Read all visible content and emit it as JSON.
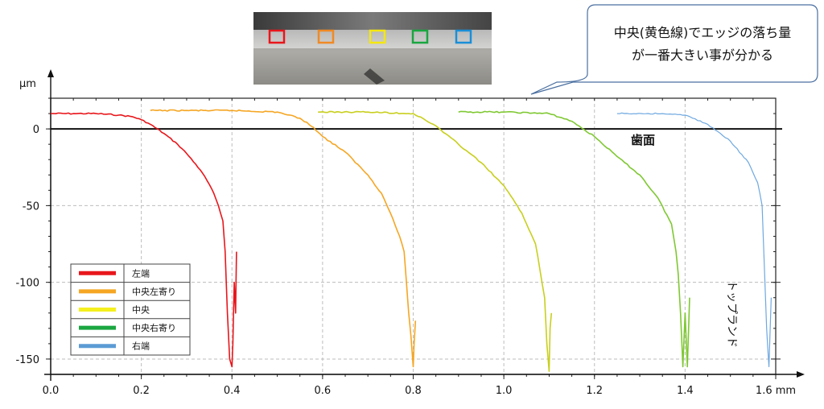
{
  "chart_data": {
    "type": "line",
    "xlabel": "mm",
    "ylabel": "µm",
    "xlim": [
      0,
      1.6
    ],
    "ylim": [
      -160,
      20
    ],
    "x_ticks": [
      "0.0",
      "0.2",
      "0.4",
      "0.6",
      "0.8",
      "1.0",
      "1.2",
      "1.4",
      "1.6 mm"
    ],
    "y_ticks": [
      "0",
      "-50",
      "-100",
      "-150"
    ],
    "y_unit": "µm",
    "grid": true,
    "legend_position": "bottom-left",
    "reference_line": {
      "y": 0,
      "label": "歯面"
    },
    "side_label": "トップランド",
    "callout": [
      "中央(黄色線)でエッジの落ち量",
      "が一番大きい事が分かる"
    ],
    "photo_markers": [
      {
        "color": "#e8161b"
      },
      {
        "color": "#f08a24"
      },
      {
        "color": "#f5e70f"
      },
      {
        "color": "#1aa640"
      },
      {
        "color": "#1a8fd8"
      }
    ],
    "series": [
      {
        "name": "左端",
        "color": "#e8161b",
        "x": [
          0.0,
          0.05,
          0.1,
          0.15,
          0.18,
          0.2,
          0.22,
          0.25,
          0.28,
          0.3,
          0.32,
          0.34,
          0.36,
          0.37,
          0.38,
          0.385,
          0.39,
          0.395,
          0.4,
          0.402,
          0.405,
          0.408,
          0.41
        ],
        "y": [
          10,
          10,
          10,
          9,
          8,
          6,
          3,
          -3,
          -10,
          -16,
          -23,
          -31,
          -42,
          -50,
          -60,
          -80,
          -120,
          -150,
          -155,
          -140,
          -100,
          -120,
          -80
        ]
      },
      {
        "name": "中央左寄り",
        "color": "#f5a623",
        "x": [
          0.22,
          0.3,
          0.4,
          0.5,
          0.55,
          0.58,
          0.6,
          0.65,
          0.7,
          0.73,
          0.75,
          0.77,
          0.78,
          0.785,
          0.79,
          0.795,
          0.8,
          0.802,
          0.805
        ],
        "y": [
          12,
          12,
          12,
          11,
          7,
          1,
          -5,
          -15,
          -30,
          -42,
          -55,
          -70,
          -80,
          -100,
          -120,
          -135,
          -155,
          -140,
          -125
        ]
      },
      {
        "name": "中央",
        "color": "#c8cf1e",
        "x": [
          0.59,
          0.7,
          0.8,
          0.85,
          0.9,
          0.95,
          1.0,
          1.04,
          1.07,
          1.09,
          1.095,
          1.1,
          1.102,
          1.105
        ],
        "y": [
          11,
          11,
          10,
          2,
          -10,
          -22,
          -37,
          -55,
          -75,
          -110,
          -140,
          -158,
          -130,
          -120
        ]
      },
      {
        "name": "中央右寄り",
        "color": "#7fc832",
        "x": [
          0.9,
          1.0,
          1.1,
          1.15,
          1.2,
          1.25,
          1.3,
          1.34,
          1.37,
          1.38,
          1.385,
          1.39,
          1.395,
          1.4,
          1.405,
          1.41
        ],
        "y": [
          11,
          11,
          10,
          5,
          -5,
          -18,
          -30,
          -45,
          -62,
          -80,
          -95,
          -120,
          -155,
          -120,
          -155,
          -110
        ]
      },
      {
        "name": "右端",
        "color": "#6ea8e0",
        "x": [
          1.25,
          1.35,
          1.4,
          1.45,
          1.5,
          1.54,
          1.56,
          1.57,
          1.575,
          1.58,
          1.585,
          1.59
        ],
        "y": [
          10,
          10,
          9,
          3,
          -8,
          -22,
          -35,
          -50,
          -90,
          -130,
          -155,
          -110
        ]
      }
    ]
  }
}
